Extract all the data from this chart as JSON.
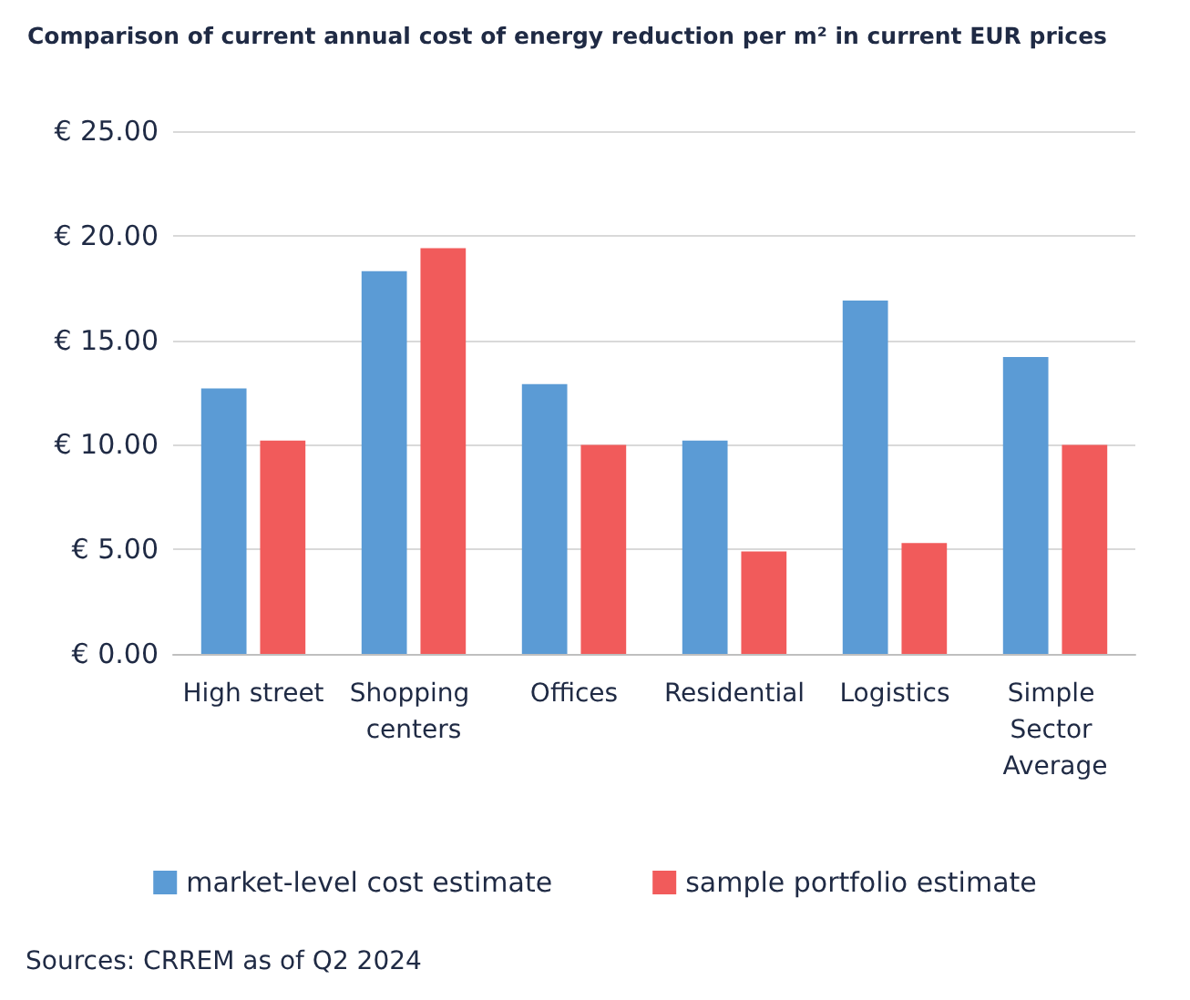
{
  "chart_data": {
    "type": "bar",
    "title": "Comparison of current annual cost of energy reduction per m² in current EUR prices",
    "categories": [
      "High street",
      "Shopping centers",
      "Offices",
      "Residential",
      "Logistics",
      "Simple Sector Average"
    ],
    "series": [
      {
        "name": "market-level cost estimate",
        "color": "#5b9bd5",
        "values": [
          12.7,
          18.3,
          12.9,
          10.2,
          16.9,
          14.2
        ]
      },
      {
        "name": "sample portfolio estimate",
        "color": "#f15b5b",
        "values": [
          10.2,
          19.4,
          10.0,
          4.9,
          5.3,
          10.0
        ]
      }
    ],
    "ylim": [
      0,
      25
    ],
    "yticks": [
      {
        "value": 0,
        "label": "€ 0.00"
      },
      {
        "value": 5,
        "label": "€ 5.00"
      },
      {
        "value": 10,
        "label": "€ 10.00"
      },
      {
        "value": 15,
        "label": "€ 15.00"
      },
      {
        "value": 20,
        "label": "€ 20.00"
      },
      {
        "value": 25,
        "label": "€ 25.00"
      }
    ],
    "grid": "y",
    "legend": "bottom",
    "annotations": [
      "Sources: CRREM as of Q2 2024"
    ]
  }
}
